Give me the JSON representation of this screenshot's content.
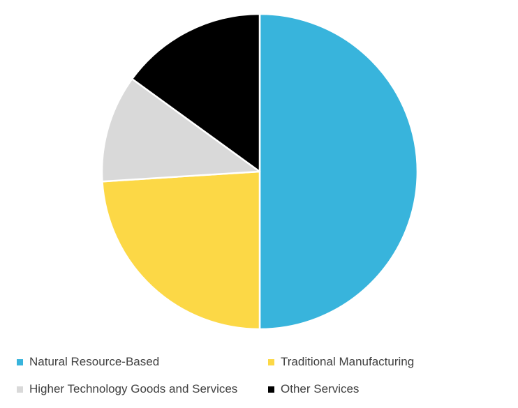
{
  "chart_data": {
    "type": "pie",
    "title": "",
    "categories": [
      "Natural Resource-Based",
      "Traditional Manufacturing",
      "Higher Technology Goods and Services",
      "Other Services"
    ],
    "values": [
      50,
      24,
      11,
      15
    ],
    "colors": [
      "#38b4dc",
      "#fcd846",
      "#d9d9d9",
      "#000000"
    ],
    "start_angle_deg": 0,
    "direction": "clockwise",
    "legend_position": "bottom",
    "slice_border_color": "#ffffff"
  }
}
